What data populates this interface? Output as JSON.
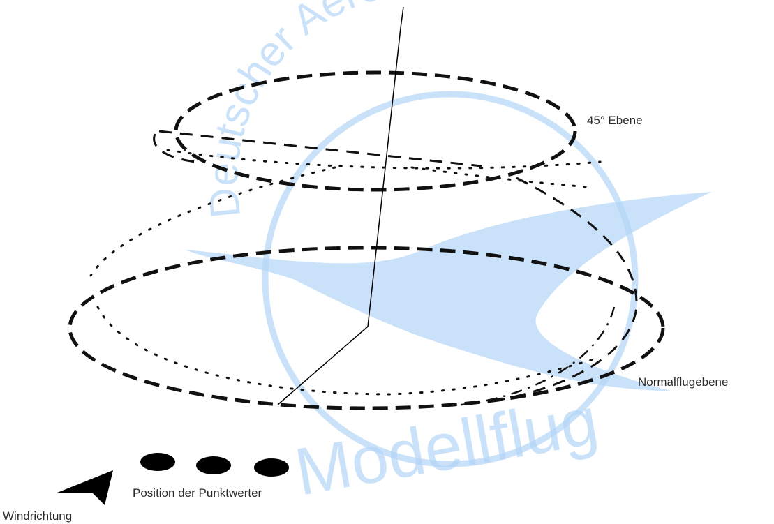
{
  "labels": {
    "plane_45": "45° Ebene",
    "normal_plane": "Normalflugebene",
    "judges_position": "Position der Punktwerter",
    "wind_direction": "Windrichtung"
  },
  "watermark": {
    "arc_text": "Deutscher Aero Club",
    "big_text": "Modellflug",
    "color": "#b3d5f7"
  },
  "colors": {
    "line": "#111111",
    "text": "#2a2a2a"
  }
}
